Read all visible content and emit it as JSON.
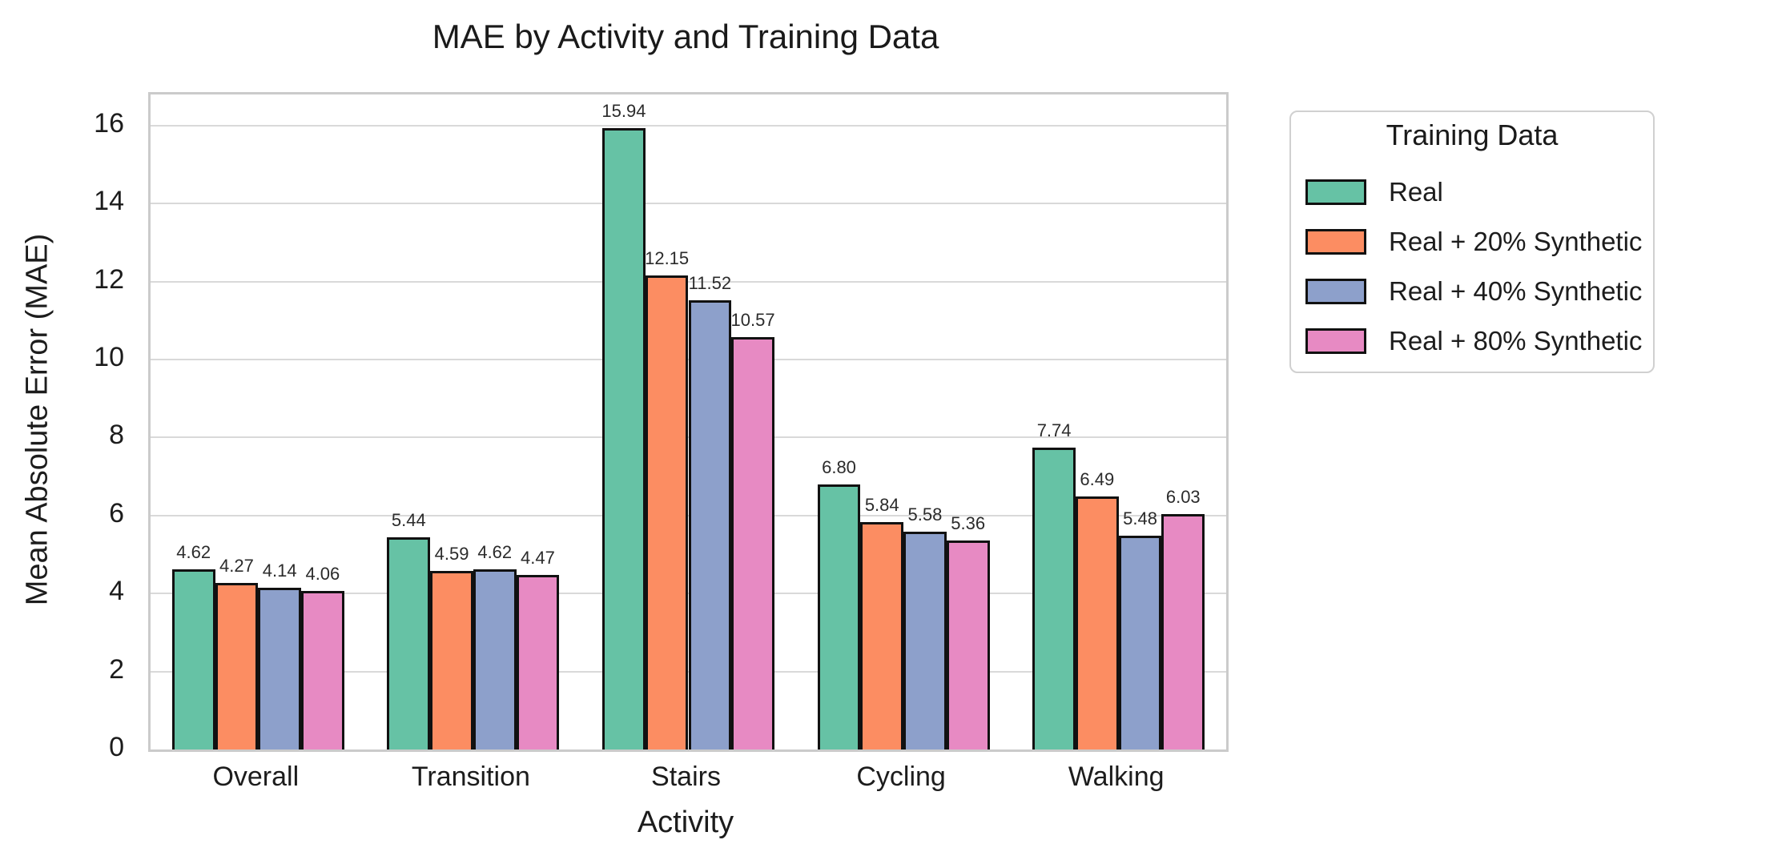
{
  "chart_data": {
    "type": "bar",
    "title": "MAE by Activity and Training Data",
    "xlabel": "Activity",
    "ylabel": "Mean Absolute Error (MAE)",
    "categories": [
      "Overall",
      "Transition",
      "Stairs",
      "Cycling",
      "Walking"
    ],
    "series": [
      {
        "name": "Real",
        "color": "#66c2a5",
        "values": [
          4.62,
          5.44,
          15.94,
          6.8,
          7.74
        ]
      },
      {
        "name": "Real + 20% Synthetic",
        "color": "#fc8d62",
        "values": [
          4.27,
          4.59,
          12.15,
          5.84,
          6.49
        ]
      },
      {
        "name": "Real + 40% Synthetic",
        "color": "#8da0cb",
        "values": [
          4.14,
          4.62,
          11.52,
          5.58,
          5.48
        ]
      },
      {
        "name": "Real + 80% Synthetic",
        "color": "#e78ac3",
        "values": [
          4.06,
          4.47,
          10.57,
          5.36,
          6.03
        ]
      }
    ],
    "yticks": [
      0,
      2,
      4,
      6,
      8,
      10,
      12,
      14,
      16
    ],
    "ylim": [
      0,
      16.8
    ],
    "grid": "horizontal",
    "legend_title": "Training Data",
    "legend_position": "outside-upper-right",
    "value_label_decimals": 2,
    "bar_edge_color": "#111111"
  }
}
